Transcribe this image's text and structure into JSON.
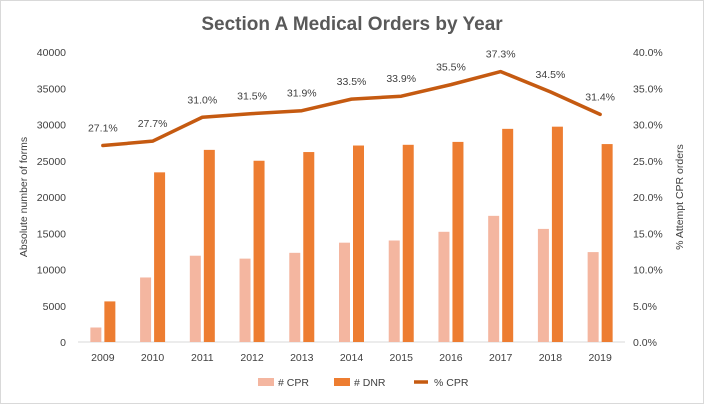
{
  "chart_data": {
    "type": "bar",
    "title": "Section A Medical Orders by Year",
    "xlabel": "",
    "ylabel": "Absolute number of forms",
    "y2label": "% Attempt CPR orders",
    "categories": [
      "2009",
      "2010",
      "2011",
      "2012",
      "2013",
      "2014",
      "2015",
      "2016",
      "2017",
      "2018",
      "2019"
    ],
    "series": [
      {
        "name": "# CPR",
        "type": "bar",
        "axis": "left",
        "color": "#F4B6A0",
        "values": [
          2000,
          8900,
          11900,
          11500,
          12300,
          13700,
          14000,
          15200,
          17400,
          15600,
          12400
        ]
      },
      {
        "name": "# DNR",
        "type": "bar",
        "axis": "left",
        "color": "#ED7D31",
        "values": [
          5600,
          23400,
          26500,
          25000,
          26200,
          27100,
          27200,
          27600,
          29400,
          29700,
          27300
        ]
      },
      {
        "name": "% CPR",
        "type": "line",
        "axis": "right",
        "color": "#C55A11",
        "values": [
          27.1,
          27.7,
          31.0,
          31.5,
          31.9,
          33.5,
          33.9,
          35.5,
          37.3,
          34.5,
          31.4
        ],
        "labels": [
          "27.1%",
          "27.7%",
          "31.0%",
          "31.5%",
          "31.9%",
          "33.5%",
          "33.9%",
          "35.5%",
          "37.3%",
          "34.5%",
          "31.4%"
        ]
      }
    ],
    "ylim": [
      0,
      40000
    ],
    "y_ticks": [
      "0",
      "5000",
      "10000",
      "15000",
      "20000",
      "25000",
      "30000",
      "35000",
      "40000"
    ],
    "y2lim": [
      0,
      40
    ],
    "y2_ticks": [
      "0.0%",
      "5.0%",
      "10.0%",
      "15.0%",
      "20.0%",
      "25.0%",
      "30.0%",
      "35.0%",
      "40.0%"
    ],
    "grid": false,
    "legend": "bottom"
  }
}
